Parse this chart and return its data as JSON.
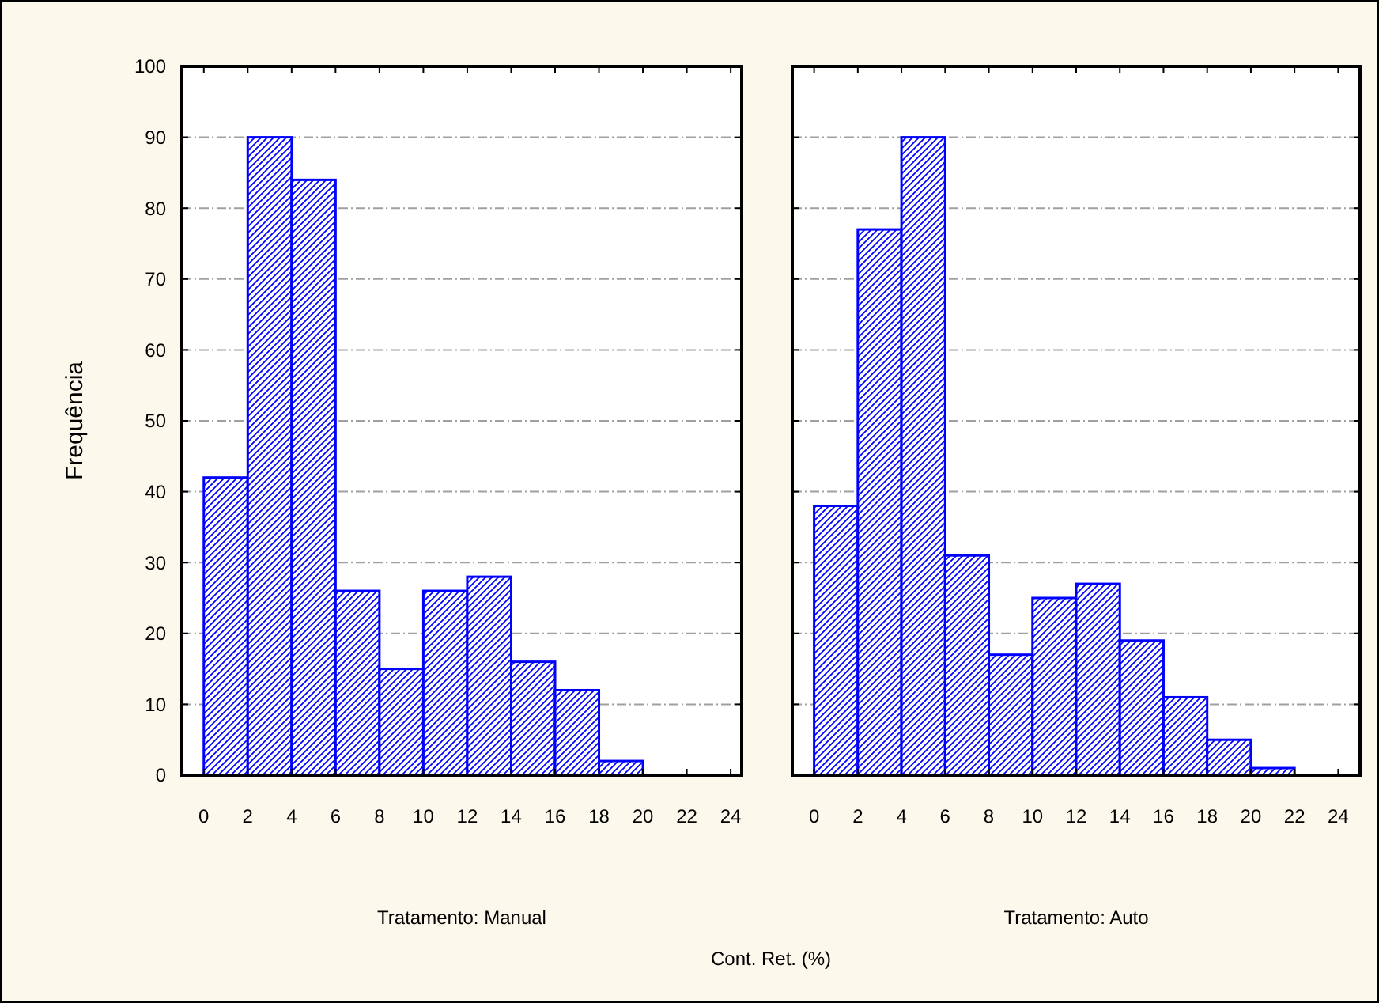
{
  "chart_data": [
    {
      "type": "histogram",
      "ylabel": "Frequência",
      "xlabel": "Tratamento: Manual",
      "annotations": [
        "Cont. Ret. (%)"
      ],
      "bins": [
        0,
        2,
        4,
        6,
        8,
        10,
        12,
        14,
        16,
        18,
        20
      ],
      "values": [
        42,
        90,
        84,
        26,
        15,
        26,
        28,
        16,
        12,
        2
      ],
      "color": "#0000ff",
      "xlim": [
        -1,
        24.5
      ],
      "xticks": [
        0,
        2,
        4,
        6,
        8,
        10,
        12,
        14,
        16,
        18,
        20,
        22,
        24
      ],
      "ylim": [
        0,
        100
      ],
      "yticks": [
        0,
        10,
        20,
        30,
        40,
        50,
        60,
        70,
        80,
        90,
        100
      ],
      "grid": "y"
    },
    {
      "type": "histogram",
      "xlabel": "Tratamento: Auto",
      "bins": [
        0,
        2,
        4,
        6,
        8,
        10,
        12,
        14,
        16,
        18,
        20,
        22
      ],
      "values": [
        38,
        77,
        90,
        31,
        17,
        25,
        27,
        19,
        11,
        5,
        1
      ],
      "color": "#0000ff",
      "xlim": [
        -1,
        25
      ],
      "xticks": [
        0,
        2,
        4,
        6,
        8,
        10,
        12,
        14,
        16,
        18,
        20,
        22,
        24
      ],
      "ylim": [
        0,
        100
      ],
      "yticks": [
        0,
        10,
        20,
        30,
        40,
        50,
        60,
        70,
        80,
        90,
        100
      ],
      "grid": "y",
      "tick_labels": "x"
    }
  ]
}
